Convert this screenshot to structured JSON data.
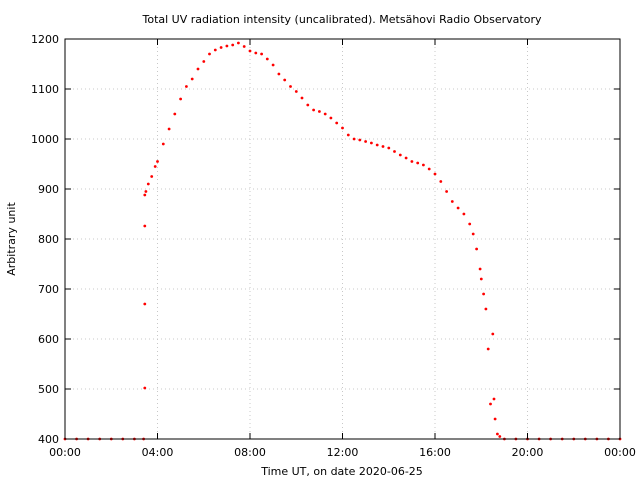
{
  "chart_data": {
    "type": "scatter",
    "title": "Total UV radiation intensity (uncalibrated). Metsähovi Radio Observatory",
    "xlabel": "Time UT, on date 2020-06-25",
    "ylabel": "Arbitrary unit",
    "xlim": [
      0,
      24
    ],
    "ylim": [
      400,
      1200
    ],
    "x_tick_labels": [
      "00:00",
      "04:00",
      "08:00",
      "12:00",
      "16:00",
      "20:00",
      "00:00"
    ],
    "y_tick_labels": [
      "400",
      "500",
      "600",
      "700",
      "800",
      "900",
      "1000",
      "1100",
      "1200"
    ],
    "grid": true,
    "legend": "none",
    "colors": {
      "series": "#ff0000",
      "grid": "#c8c8c8",
      "axis": "#000000"
    },
    "series": [
      {
        "x": [
          0.0,
          0.5,
          1.0,
          1.5,
          2.0,
          2.5,
          3.0,
          3.4,
          3.45,
          3.45,
          3.45,
          3.45,
          3.5,
          3.6,
          3.75,
          3.9,
          4.0,
          4.25,
          4.5,
          4.75,
          5.0,
          5.25,
          5.5,
          5.75,
          6.0,
          6.25,
          6.5,
          6.75,
          7.0,
          7.25,
          7.5,
          7.75,
          8.0,
          8.25,
          8.5,
          8.75,
          9.0,
          9.25,
          9.5,
          9.75,
          10.0,
          10.25,
          10.5,
          10.75,
          11.0,
          11.25,
          11.5,
          11.75,
          12.0,
          12.25,
          12.5,
          12.75,
          13.0,
          13.25,
          13.5,
          13.75,
          14.0,
          14.25,
          14.5,
          14.75,
          15.0,
          15.25,
          15.5,
          15.75,
          16.0,
          16.25,
          16.5,
          16.75,
          17.0,
          17.25,
          17.5,
          17.65,
          17.8,
          17.95,
          18.0,
          18.1,
          18.2,
          18.3,
          18.4,
          18.5,
          18.55,
          18.6,
          18.7,
          18.8,
          19.0,
          19.5,
          20.0,
          20.5,
          21.0,
          21.5,
          22.0,
          22.5,
          23.0,
          23.5,
          24.0
        ],
        "y": [
          400,
          400,
          400,
          400,
          400,
          400,
          400,
          400,
          502,
          670,
          826,
          888,
          895,
          910,
          925,
          945,
          955,
          990,
          1020,
          1050,
          1080,
          1105,
          1120,
          1140,
          1155,
          1170,
          1178,
          1183,
          1186,
          1188,
          1192,
          1185,
          1176,
          1172,
          1170,
          1160,
          1148,
          1130,
          1118,
          1105,
          1095,
          1082,
          1068,
          1058,
          1055,
          1050,
          1042,
          1032,
          1022,
          1008,
          1000,
          998,
          995,
          992,
          988,
          985,
          982,
          975,
          968,
          962,
          955,
          952,
          948,
          940,
          930,
          915,
          895,
          875,
          862,
          850,
          830,
          810,
          780,
          740,
          720,
          690,
          660,
          580,
          470,
          610,
          480,
          440,
          410,
          405,
          400,
          400,
          400,
          400,
          400,
          400,
          400,
          400,
          400,
          400,
          400
        ]
      }
    ]
  }
}
